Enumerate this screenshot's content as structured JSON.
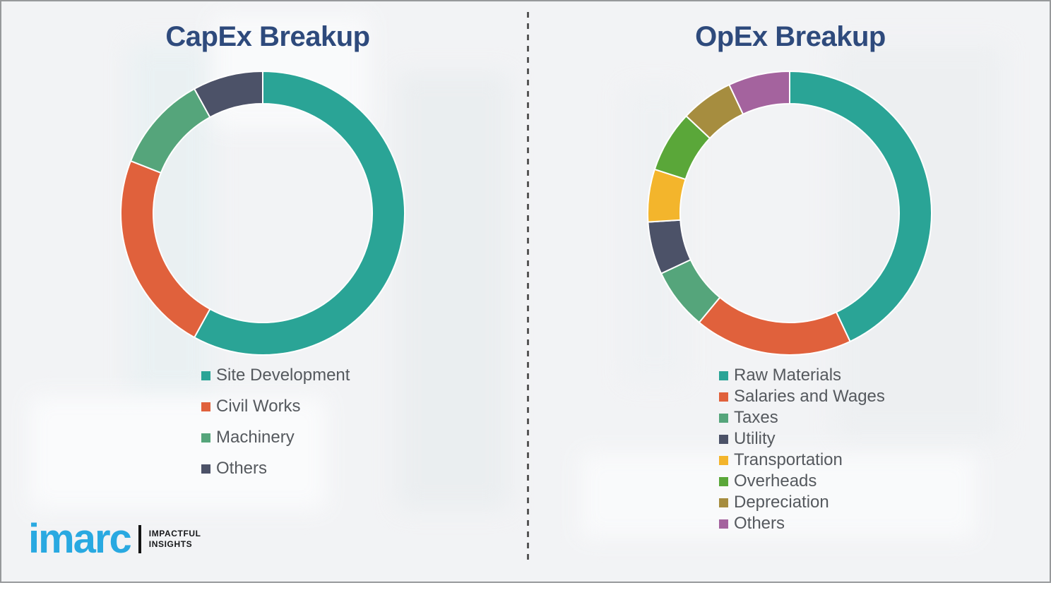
{
  "chart_data": [
    {
      "type": "pie",
      "subtype": "donut",
      "title": "CapEx Breakup",
      "categories": [
        "Site Development",
        "Civil Works",
        "Machinery",
        "Others"
      ],
      "values": [
        58,
        23,
        11,
        8
      ],
      "value_unit": "% (estimated from arc angles; no data labels shown)",
      "colors": [
        "#2aa496",
        "#e0613c",
        "#55a57b",
        "#4c5268"
      ],
      "start_angle_deg": 0,
      "direction": "clockwise",
      "legend_position": "below-left",
      "inner_radius_ratio": 0.77
    },
    {
      "type": "pie",
      "subtype": "donut",
      "title": "OpEx Breakup",
      "categories": [
        "Raw Materials",
        "Salaries and Wages",
        "Taxes",
        "Utility",
        "Transportation",
        "Overheads",
        "Depreciation",
        "Others"
      ],
      "values": [
        43,
        18,
        7,
        6,
        6,
        7,
        6,
        7
      ],
      "value_unit": "% (estimated from arc angles; no data labels shown)",
      "colors": [
        "#2aa496",
        "#e0613c",
        "#55a57b",
        "#4c5268",
        "#f3b52c",
        "#5aa739",
        "#a68d3f",
        "#a4639e"
      ],
      "start_angle_deg": 0,
      "direction": "clockwise",
      "legend_position": "below-left",
      "inner_radius_ratio": 0.77
    }
  ],
  "logo": {
    "brand": "imarc",
    "tagline_line1": "IMPACTFUL",
    "tagline_line2": "INSIGHTS",
    "brand_color": "#29a9e1"
  },
  "theme": {
    "title_color": "#2e4a7c",
    "legend_text_color": "#55595e",
    "background_color": "#f2f3f5",
    "frame_border_color": "#97999b",
    "divider_color": "#565656",
    "segment_gap_color": "#ffffff"
  }
}
